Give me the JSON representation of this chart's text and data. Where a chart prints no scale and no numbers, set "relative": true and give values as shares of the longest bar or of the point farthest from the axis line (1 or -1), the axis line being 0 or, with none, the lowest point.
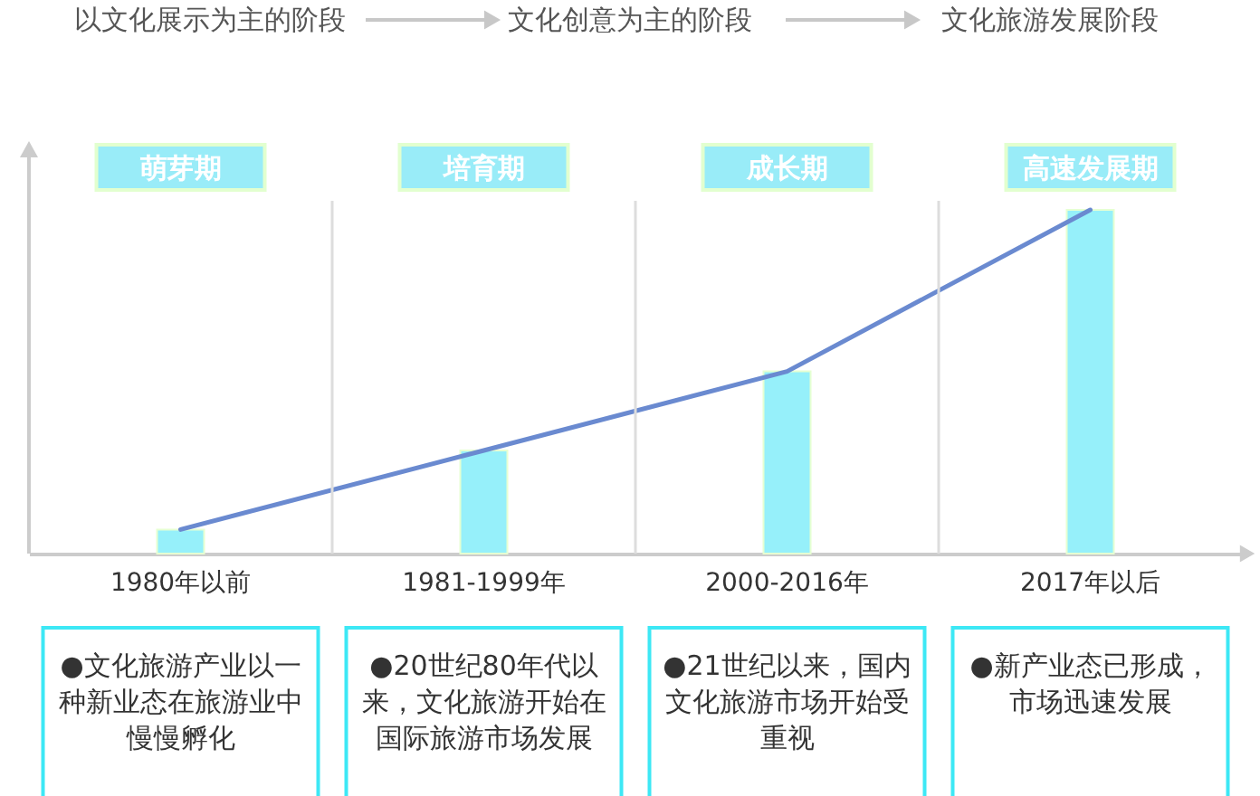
{
  "chart_data": {
    "type": "bar",
    "relative": true,
    "categories": [
      "1980年以前",
      "1981-1999年",
      "2000-2016年",
      "2017年以后"
    ],
    "series": [
      {
        "color": "#96f0fa",
        "values": [
          0.07,
          0.3,
          0.53,
          1
        ]
      },
      {
        "type": "line",
        "color": "#6a8ad0",
        "values": [
          0.07,
          0.3,
          0.53,
          1
        ]
      }
    ],
    "grid": "x",
    "annotations": [
      "以文化展示为主的阶段",
      "文化创意为主的阶段",
      "文化旅游发展阶段",
      "萌芽期",
      "培育期",
      "成长期",
      "高速发展期",
      "●文化旅游产业以一种新业态在旅游业中慢慢孵化",
      "●20世纪80年代以来，文化旅游开始在国际旅游市场发展",
      "●21世纪以来，国内文化旅游市场开始受重视",
      "●新产业态已形成，市场迅速发展"
    ]
  }
}
